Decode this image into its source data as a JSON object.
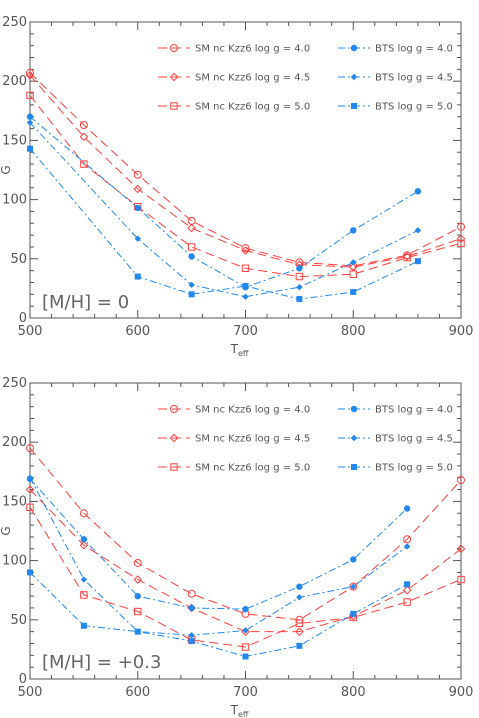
{
  "colors": {
    "sm": "#ff4040",
    "bts": "#2288ee",
    "axis": "#555555"
  },
  "chart_data": [
    {
      "type": "line",
      "xlabel": "T",
      "xlabel_sub": "eff",
      "ylabel": "G",
      "xlim": [
        500,
        900
      ],
      "ylim": [
        0,
        250
      ],
      "xticks": [
        500,
        600,
        700,
        800,
        900
      ],
      "yticks": [
        0,
        50,
        100,
        150,
        200,
        250
      ],
      "annotation": "[M/H] = 0",
      "legend_position": "top-right",
      "series": [
        {
          "name": "SM nc Kzz6 log g = 4.0",
          "group": "sm",
          "marker": "circle-open",
          "x": [
            500,
            550,
            600,
            650,
            700,
            750,
            800,
            850,
            900
          ],
          "y": [
            207,
            163,
            121,
            82,
            59,
            47,
            44,
            53,
            77
          ]
        },
        {
          "name": "SM nc Kzz6 log g = 4.5",
          "group": "sm",
          "marker": "diamond-open",
          "x": [
            500,
            550,
            600,
            650,
            700,
            750,
            800,
            850,
            900
          ],
          "y": [
            205,
            153,
            109,
            76,
            57,
            45,
            43,
            52,
            67
          ]
        },
        {
          "name": "SM nc Kzz6 log g = 5.0",
          "group": "sm",
          "marker": "square-open",
          "x": [
            500,
            550,
            600,
            650,
            700,
            750,
            800,
            850,
            900
          ],
          "y": [
            188,
            130,
            94,
            60,
            42,
            35,
            37,
            51,
            63
          ]
        },
        {
          "name": "BTS log g = 4.0",
          "group": "bts",
          "marker": "circle-filled",
          "x": [
            500,
            600,
            650,
            700,
            750,
            800,
            860
          ],
          "y": [
            170,
            93,
            52,
            26,
            42,
            74,
            107
          ]
        },
        {
          "name": "BTS log g = 4.5",
          "group": "bts",
          "marker": "diamond-filled",
          "x": [
            500,
            600,
            650,
            700,
            750,
            800,
            860
          ],
          "y": [
            165,
            67,
            28,
            18,
            26,
            47,
            74
          ]
        },
        {
          "name": "BTS log g = 5.0",
          "group": "bts",
          "marker": "square-filled",
          "x": [
            500,
            600,
            650,
            700,
            750,
            800,
            860
          ],
          "y": [
            143,
            35,
            20,
            27,
            16,
            22,
            48
          ]
        }
      ]
    },
    {
      "type": "line",
      "xlabel": "T",
      "xlabel_sub": "eff",
      "ylabel": "G",
      "xlim": [
        500,
        900
      ],
      "ylim": [
        0,
        250
      ],
      "xticks": [
        500,
        600,
        700,
        800,
        900
      ],
      "yticks": [
        0,
        50,
        100,
        150,
        200,
        250
      ],
      "annotation": "[M/H] = +0.3",
      "legend_position": "top-right",
      "series": [
        {
          "name": "SM nc Kzz6 log g = 4.0",
          "group": "sm",
          "marker": "circle-open",
          "x": [
            500,
            550,
            600,
            650,
            700,
            750,
            800,
            850,
            900
          ],
          "y": [
            195,
            140,
            98,
            72,
            55,
            50,
            78,
            118,
            168
          ]
        },
        {
          "name": "SM nc Kzz6 log g = 4.5",
          "group": "sm",
          "marker": "diamond-open",
          "x": [
            500,
            550,
            600,
            650,
            700,
            750,
            800,
            850,
            900
          ],
          "y": [
            160,
            113,
            84,
            60,
            40,
            40,
            53,
            75,
            110
          ]
        },
        {
          "name": "SM nc Kzz6 log g = 5.0",
          "group": "sm",
          "marker": "square-open",
          "x": [
            500,
            550,
            600,
            650,
            700,
            750,
            800,
            850,
            900
          ],
          "y": [
            145,
            71,
            57,
            33,
            27,
            47,
            52,
            65,
            84
          ]
        },
        {
          "name": "BTS log g = 4.0",
          "group": "bts",
          "marker": "circle-filled",
          "x": [
            500,
            550,
            600,
            650,
            700,
            750,
            800,
            850
          ],
          "y": [
            169,
            118,
            70,
            60,
            59,
            78,
            101,
            144
          ]
        },
        {
          "name": "BTS log g = 4.5",
          "group": "bts",
          "marker": "diamond-filled",
          "x": [
            500,
            550,
            600,
            650,
            700,
            750,
            800,
            850
          ],
          "y": [
            170,
            84,
            40,
            37,
            41,
            69,
            78,
            112
          ]
        },
        {
          "name": "BTS log g = 5.0",
          "group": "bts",
          "marker": "square-filled",
          "x": [
            500,
            550,
            600,
            650,
            700,
            750,
            800,
            850
          ],
          "y": [
            90,
            45,
            40,
            32,
            19,
            28,
            55,
            80
          ]
        }
      ]
    }
  ]
}
